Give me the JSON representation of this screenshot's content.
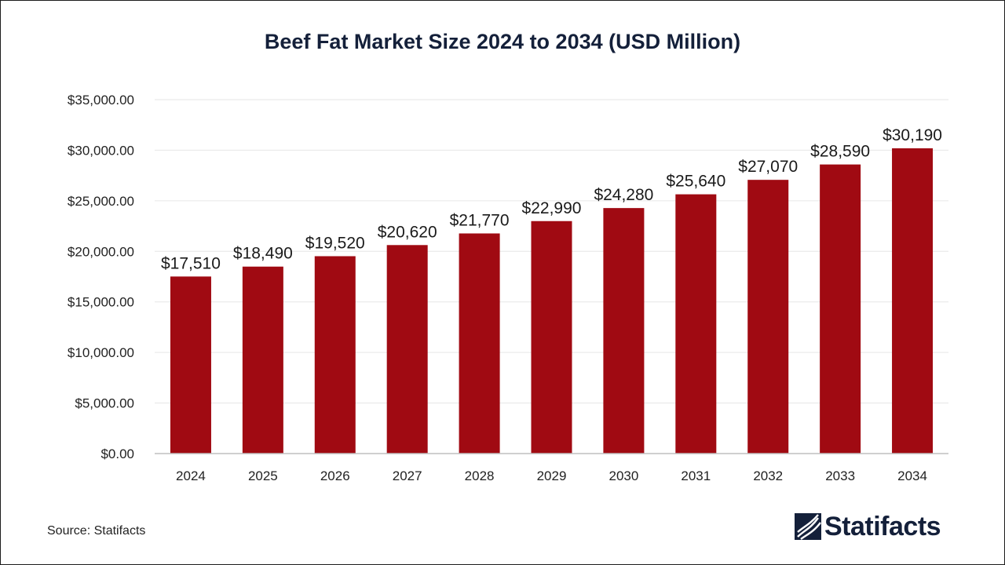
{
  "source": "Source: Statifacts",
  "brand": {
    "name": "Statifacts",
    "color": "#14203a",
    "icon": "statifacts-logo-icon"
  },
  "chart_data": {
    "type": "bar",
    "title": "Beef Fat Market Size 2024 to 2034 (USD Million)",
    "xlabel": "",
    "ylabel": "",
    "categories": [
      "2024",
      "2025",
      "2026",
      "2027",
      "2028",
      "2029",
      "2030",
      "2031",
      "2032",
      "2033",
      "2034"
    ],
    "values": [
      17510,
      18490,
      19520,
      20620,
      21770,
      22990,
      24280,
      25640,
      27070,
      28590,
      30190
    ],
    "value_labels": [
      "$17,510",
      "$18,490",
      "$19,520",
      "$20,620",
      "$21,770",
      "$22,990",
      "$24,280",
      "$25,640",
      "$27,070",
      "$28,590",
      "$30,190"
    ],
    "ylim": [
      0,
      35000
    ],
    "yticks": [
      0,
      5000,
      10000,
      15000,
      20000,
      25000,
      30000,
      35000
    ],
    "ytick_labels": [
      "$0.00",
      "$5,000.00",
      "$10,000.00",
      "$15,000.00",
      "$20,000.00",
      "$25,000.00",
      "$30,000.00",
      "$35,000.00"
    ],
    "bar_color": "#a00a12",
    "grid": true,
    "legend": "none"
  }
}
